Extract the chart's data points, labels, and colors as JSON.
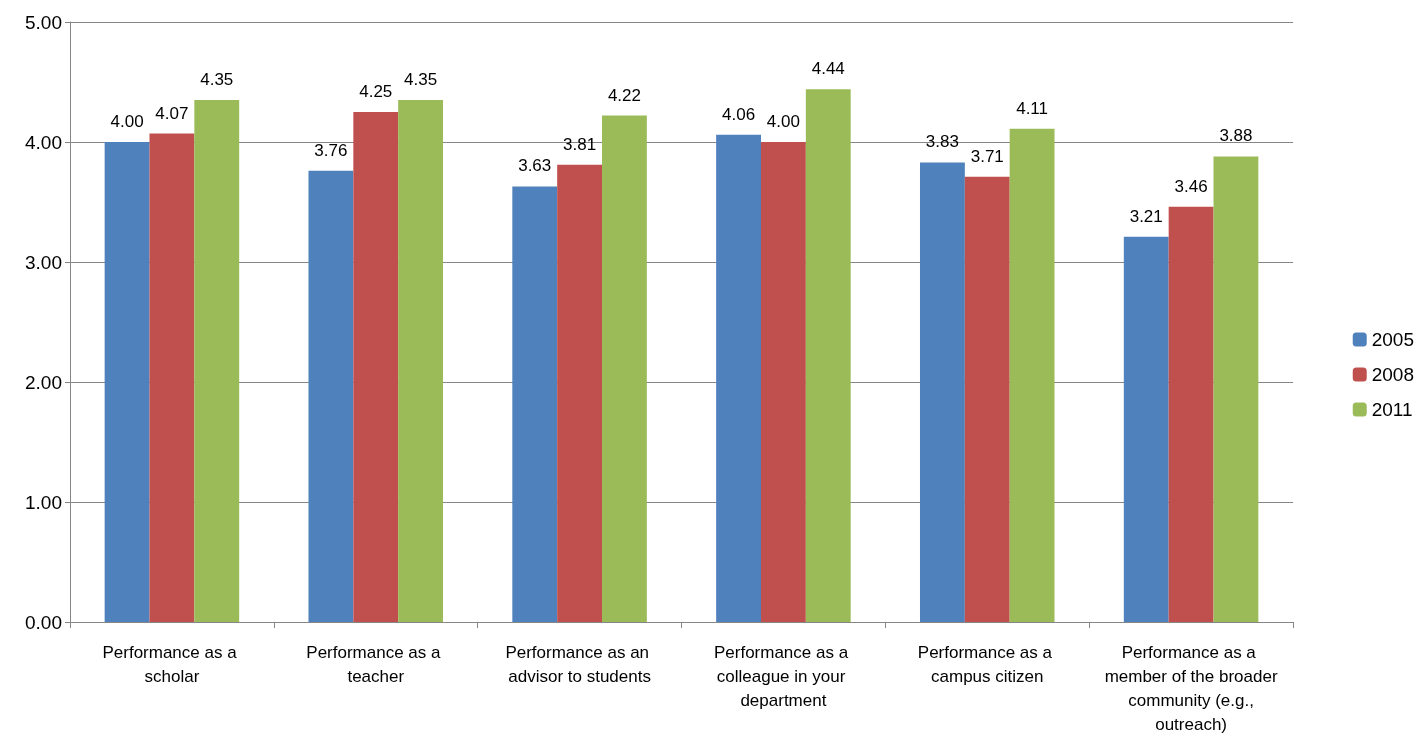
{
  "chart_data": {
    "type": "bar",
    "categories": [
      "Performance as a scholar",
      "Performance as a teacher",
      "Performance as an advisor to students",
      "Performance as a colleague in your department",
      "Performance as a campus citizen",
      "Performance as a member of the broader community (e.g., outreach)"
    ],
    "series": [
      {
        "name": "2005",
        "color": "#4f81bd",
        "values": [
          4.0,
          3.76,
          3.63,
          4.06,
          3.83,
          3.21
        ],
        "value_labels": [
          "4.00",
          "3.76",
          "3.63",
          "4.06",
          "3.83",
          "3.21"
        ]
      },
      {
        "name": "2008",
        "color": "#c0504d",
        "values": [
          4.07,
          4.25,
          3.81,
          4.0,
          3.71,
          3.46
        ],
        "value_labels": [
          "4.07",
          "4.25",
          "3.81",
          "4.00",
          "3.71",
          "3.46"
        ]
      },
      {
        "name": "2011",
        "color": "#9bbb59",
        "values": [
          4.35,
          4.35,
          4.22,
          4.44,
          4.11,
          3.88
        ],
        "value_labels": [
          "4.35",
          "4.35",
          "4.22",
          "4.44",
          "4.11",
          "3.88"
        ]
      }
    ],
    "ylim": [
      0,
      5
    ],
    "yticks": [
      {
        "value": 0,
        "label": "0.00"
      },
      {
        "value": 1,
        "label": "1.00"
      },
      {
        "value": 2,
        "label": "2.00"
      },
      {
        "value": 3,
        "label": "3.00"
      },
      {
        "value": 4,
        "label": "4.00"
      },
      {
        "value": 5,
        "label": "5.00"
      }
    ],
    "grid": "y",
    "legend": "right"
  }
}
